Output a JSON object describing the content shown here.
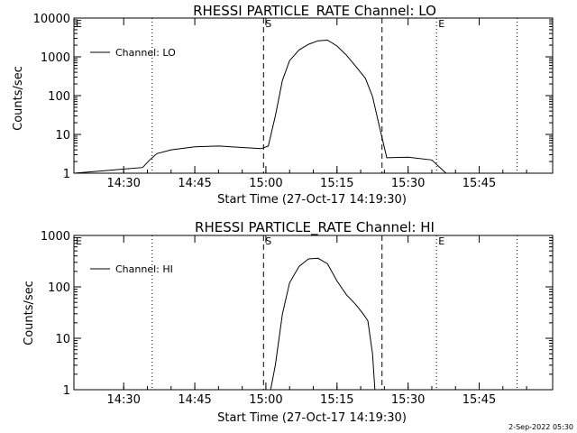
{
  "chart_data": [
    {
      "type": "line",
      "title": "RHESSI PARTICLE_RATE Channel: LO",
      "xlabel": "Start Time (27-Oct-17 14:19:30)",
      "ylabel": "Counts/sec",
      "yscale": "log",
      "ylim": [
        1,
        10000
      ],
      "xlim_minutes_from_start": [
        0,
        101
      ],
      "x_ticks": [
        "14:30",
        "14:45",
        "15:00",
        "15:15",
        "15:30",
        "15:45"
      ],
      "y_ticks": [
        "1",
        "10",
        "100",
        "1000",
        "10000"
      ],
      "legend": {
        "position": "top-left",
        "entries": [
          "Channel: LO"
        ]
      },
      "markers": [
        {
          "label": "E",
          "time": "14:19:30",
          "style": "dotted"
        },
        {
          "label": "",
          "time": "14:36:00",
          "style": "dotted"
        },
        {
          "label": "S",
          "time": "14:59:30",
          "style": "dashed"
        },
        {
          "label": "",
          "time": "15:24:30",
          "style": "dashed"
        },
        {
          "label": "E",
          "time": "15:36:00",
          "style": "dotted"
        },
        {
          "label": "",
          "time": "15:53:00",
          "style": "dotted"
        }
      ],
      "series": [
        {
          "name": "Channel: LO",
          "x": [
            "14:19:30",
            "14:34:00",
            "14:35:30",
            "14:37:00",
            "14:40:00",
            "14:45:00",
            "14:50:00",
            "14:55:00",
            "14:59:00",
            "15:00:30",
            "15:02:00",
            "15:03:30",
            "15:05:00",
            "15:07:00",
            "15:09:00",
            "15:11:00",
            "15:13:00",
            "15:15:00",
            "15:17:00",
            "15:19:00",
            "15:21:00",
            "15:22:30",
            "15:24:00",
            "15:25:30",
            "15:30:00",
            "15:35:00",
            "15:38:00",
            "15:45:00",
            "15:55:00"
          ],
          "y": [
            1,
            1.4,
            2.2,
            3.2,
            4.0,
            4.8,
            5.0,
            4.6,
            4.3,
            5,
            30,
            250,
            800,
            1500,
            2100,
            2600,
            2700,
            1900,
            1100,
            560,
            280,
            95,
            15,
            2.5,
            2.6,
            2.2,
            1,
            1,
            1
          ]
        }
      ]
    },
    {
      "type": "line",
      "title": "RHESSI PARTICLE_RATE Channel: HI",
      "xlabel": "Start Time (27-Oct-17 14:19:30)",
      "ylabel": "Counts/sec",
      "yscale": "log",
      "ylim": [
        1,
        1000
      ],
      "xlim_minutes_from_start": [
        0,
        101
      ],
      "x_ticks": [
        "14:30",
        "14:45",
        "15:00",
        "15:15",
        "15:30",
        "15:45"
      ],
      "y_ticks": [
        "1",
        "10",
        "100",
        "1000"
      ],
      "legend": {
        "position": "top-left",
        "entries": [
          "Channel: HI"
        ]
      },
      "markers": [
        {
          "label": "E",
          "time": "14:19:30",
          "style": "dotted"
        },
        {
          "label": "",
          "time": "14:36:00",
          "style": "dotted"
        },
        {
          "label": "S",
          "time": "14:59:30",
          "style": "dashed"
        },
        {
          "label": "",
          "time": "15:24:30",
          "style": "dashed"
        },
        {
          "label": "E",
          "time": "15:36:00",
          "style": "dotted"
        },
        {
          "label": "",
          "time": "15:53:00",
          "style": "dotted"
        }
      ],
      "series": [
        {
          "name": "Channel: HI",
          "x": [
            "15:01:00",
            "15:02:00",
            "15:03:30",
            "15:05:00",
            "15:07:00",
            "15:09:00",
            "15:11:00",
            "15:13:00",
            "15:15:00",
            "15:17:00",
            "15:19:00",
            "15:20:30",
            "15:21:30",
            "15:22:30",
            "15:23:00"
          ],
          "y": [
            1,
            3,
            30,
            120,
            250,
            350,
            360,
            280,
            130,
            70,
            45,
            30,
            22,
            5,
            1
          ]
        }
      ]
    }
  ],
  "footer": {
    "timestamp": "2-Sep-2022 05:30"
  }
}
